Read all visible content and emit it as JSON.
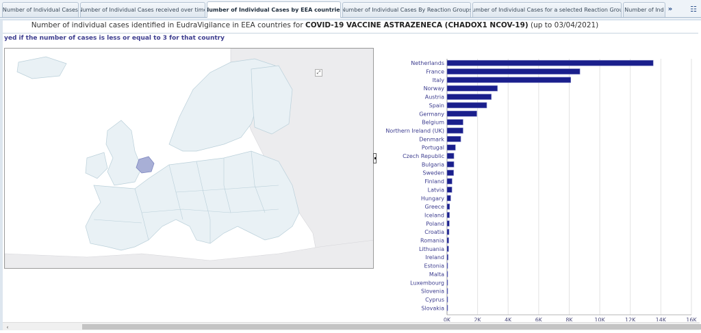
{
  "tabs": [
    {
      "label": "Number of Individual Cases",
      "active": false
    },
    {
      "label": "Number of Individual Cases received over time",
      "active": false
    },
    {
      "label": "Number of Individual Cases by EEA countries",
      "active": true
    },
    {
      "label": "Number of Individual Cases By Reaction Groups",
      "active": false
    },
    {
      "label": "Number of Individual Cases for a selected Reaction Group",
      "active": false
    },
    {
      "label": "Number of Ind",
      "active": false
    }
  ],
  "tab_scroll_icon": "»",
  "tab_menu_icon": "☷",
  "title": {
    "prefix": "Number of individual cases identified in EudraVigilance in EEA countries for",
    "product": "COVID-19 VACCINE ASTRAZENECA (CHADOX1 NCOV-19)",
    "suffix": "(up to 03/04/2021)"
  },
  "note": "yed if the number of cases is less or equal to 3 for that country",
  "map": {
    "expand_icon": "⤢",
    "highlight_color": "#a8afd6",
    "land_color": "#e9f1f5",
    "nonEEA_color": "#ececee"
  },
  "scroll_left_icon": "‹",
  "chart_data": {
    "type": "bar",
    "orientation": "horizontal",
    "bar_color": "#1a1f8c",
    "categories": [
      "Netherlands",
      "France",
      "Italy",
      "Norway",
      "Austria",
      "Spain",
      "Germany",
      "Belgium",
      "Northern Ireland (UK)",
      "Denmark",
      "Portugal",
      "Czech Republic",
      "Bulgaria",
      "Sweden",
      "Finland",
      "Latvia",
      "Hungary",
      "Greece",
      "Iceland",
      "Poland",
      "Croatia",
      "Romania",
      "Lithuania",
      "Ireland",
      "Estonia",
      "Malta",
      "Luxembourg",
      "Slovenia",
      "Cyprus",
      "Slovakia"
    ],
    "values": [
      13500,
      8700,
      8100,
      3300,
      2900,
      2600,
      1950,
      1050,
      1050,
      900,
      550,
      450,
      450,
      430,
      330,
      320,
      240,
      170,
      160,
      150,
      130,
      110,
      100,
      70,
      30,
      20,
      15,
      10,
      8,
      5
    ],
    "xlim": [
      0,
      16000
    ],
    "xticks": [
      0,
      2000,
      4000,
      6000,
      8000,
      10000,
      12000,
      14000,
      16000
    ],
    "xtick_labels": [
      "0K",
      "2K",
      "4K",
      "6K",
      "8K",
      "10K",
      "12K",
      "14K",
      "16K"
    ],
    "grid": true
  }
}
